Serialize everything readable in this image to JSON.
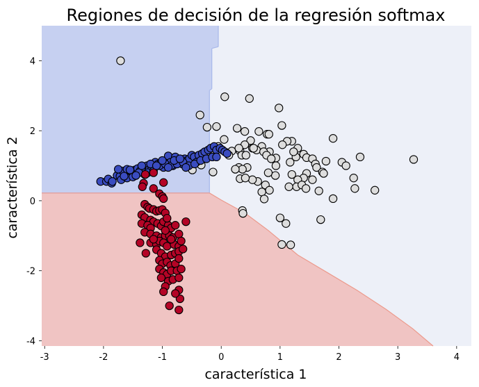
{
  "chart_data": {
    "type": "scatter",
    "title": "Regiones de decisión de la regresión softmax",
    "xlabel": "característica 1",
    "ylabel": "característica 2",
    "xlim": [
      -3.05,
      4.25
    ],
    "ylim": [
      -4.15,
      5.0
    ],
    "xticks": [
      -3,
      -2,
      -1,
      0,
      1,
      2,
      3,
      4
    ],
    "yticks": [
      -4,
      -2,
      0,
      2,
      4
    ],
    "grid": false,
    "legend": "none",
    "regions": [
      {
        "class": "blue",
        "color": "#c6d0f1",
        "boundary_color": "#a8b8ea",
        "polygon": [
          [
            -3.05,
            5.0
          ],
          [
            -0.05,
            5.0
          ],
          [
            -0.05,
            4.4
          ],
          [
            -0.16,
            4.35
          ],
          [
            -0.16,
            3.2
          ],
          [
            -0.2,
            3.15
          ],
          [
            -0.2,
            0.22
          ],
          [
            -3.05,
            0.22
          ]
        ]
      },
      {
        "class": "red",
        "color": "#f0c4c3",
        "boundary_color": "#ec9a8c",
        "polygon": [
          [
            -3.05,
            0.22
          ],
          [
            -0.2,
            0.22
          ],
          [
            0.0,
            0.02
          ],
          [
            0.4,
            -0.35
          ],
          [
            0.8,
            -0.85
          ],
          [
            1.3,
            -1.55
          ],
          [
            1.8,
            -2.05
          ],
          [
            2.3,
            -2.55
          ],
          [
            2.8,
            -3.1
          ],
          [
            3.25,
            -3.65
          ],
          [
            3.6,
            -4.15
          ],
          [
            -3.05,
            -4.15
          ]
        ]
      },
      {
        "class": "gray",
        "color": "#edf0f8",
        "boundary_color": null,
        "polygon": [
          [
            -0.05,
            5.0
          ],
          [
            4.25,
            5.0
          ],
          [
            4.25,
            -4.15
          ],
          [
            3.6,
            -4.15
          ],
          [
            3.25,
            -3.65
          ],
          [
            2.8,
            -3.1
          ],
          [
            2.3,
            -2.55
          ],
          [
            1.8,
            -2.05
          ],
          [
            1.3,
            -1.55
          ],
          [
            0.8,
            -0.85
          ],
          [
            0.4,
            -0.35
          ],
          [
            0.0,
            0.02
          ],
          [
            -0.2,
            0.22
          ],
          [
            -0.2,
            3.15
          ],
          [
            -0.16,
            3.2
          ],
          [
            -0.16,
            4.35
          ],
          [
            -0.05,
            4.4
          ]
        ]
      }
    ],
    "series": [
      {
        "class": "gray",
        "color": "#dddddd",
        "points": [
          [
            -1.71,
            4.0
          ],
          [
            0.06,
            2.97
          ],
          [
            0.48,
            2.92
          ],
          [
            0.98,
            2.65
          ],
          [
            -0.36,
            2.45
          ],
          [
            -0.24,
            2.1
          ],
          [
            -0.08,
            2.12
          ],
          [
            0.27,
            2.07
          ],
          [
            0.4,
            1.98
          ],
          [
            0.5,
            1.72
          ],
          [
            0.64,
            1.98
          ],
          [
            0.78,
            1.9
          ],
          [
            0.81,
            1.9
          ],
          [
            1.03,
            2.15
          ],
          [
            1.2,
            1.7
          ],
          [
            1.12,
            1.7
          ],
          [
            1.3,
            1.5
          ],
          [
            1.27,
            1.25
          ],
          [
            1.04,
            1.6
          ],
          [
            0.93,
            1.22
          ],
          [
            0.82,
            1.4
          ],
          [
            0.69,
            1.55
          ],
          [
            0.6,
            1.45
          ],
          [
            0.53,
            1.5
          ],
          [
            0.72,
            1.4
          ],
          [
            0.4,
            1.6
          ],
          [
            0.32,
            1.42
          ],
          [
            0.18,
            1.42
          ],
          [
            0.05,
            1.75
          ],
          [
            -0.05,
            1.55
          ],
          [
            0.13,
            1.3
          ],
          [
            0.3,
            1.5
          ],
          [
            0.35,
            1.3
          ],
          [
            0.42,
            1.3
          ],
          [
            0.55,
            1.5
          ],
          [
            0.77,
            1.3
          ],
          [
            0.85,
            1.2
          ],
          [
            0.93,
            1.0
          ],
          [
            1.17,
            1.1
          ],
          [
            1.23,
            1.4
          ],
          [
            1.4,
            1.33
          ],
          [
            1.45,
            1.23
          ],
          [
            1.55,
            1.2
          ],
          [
            1.6,
            1.05
          ],
          [
            1.78,
            1.13
          ],
          [
            1.9,
            1.78
          ],
          [
            2.05,
            1.1
          ],
          [
            2.12,
            1.0
          ],
          [
            2.36,
            1.25
          ],
          [
            2.25,
            0.65
          ],
          [
            2.27,
            0.35
          ],
          [
            2.61,
            0.3
          ],
          [
            3.27,
            1.18
          ],
          [
            1.62,
            0.95
          ],
          [
            1.72,
            0.82
          ],
          [
            1.74,
            0.78
          ],
          [
            1.45,
            0.78
          ],
          [
            1.4,
            0.65
          ],
          [
            1.3,
            0.6
          ],
          [
            1.2,
            0.75
          ],
          [
            1.15,
            0.4
          ],
          [
            1.28,
            0.4
          ],
          [
            1.37,
            0.45
          ],
          [
            1.44,
            0.35
          ],
          [
            1.55,
            0.6
          ],
          [
            1.66,
            0.28
          ],
          [
            1.9,
            0.06
          ],
          [
            0.92,
            0.72
          ],
          [
            0.8,
            0.8
          ],
          [
            0.75,
            0.45
          ],
          [
            0.69,
            0.25
          ],
          [
            0.73,
            0.05
          ],
          [
            0.82,
            0.3
          ],
          [
            0.62,
            0.55
          ],
          [
            0.53,
            0.6
          ],
          [
            0.44,
            0.95
          ],
          [
            0.3,
            0.95
          ],
          [
            0.36,
            0.9
          ],
          [
            0.32,
            0.63
          ],
          [
            0.41,
            0.65
          ],
          [
            0.24,
            0.9
          ],
          [
            -0.14,
            0.82
          ],
          [
            -0.34,
            1.02
          ],
          [
            -0.49,
            0.88
          ],
          [
            0.36,
            -0.28
          ],
          [
            0.37,
            -0.36
          ],
          [
            1.0,
            -0.49
          ],
          [
            1.1,
            -0.65
          ],
          [
            1.69,
            -0.54
          ],
          [
            1.03,
            -1.25
          ],
          [
            1.18,
            -1.26
          ]
        ]
      },
      {
        "class": "blue",
        "color": "#3a4cc0",
        "points": [
          [
            -2.05,
            0.55
          ],
          [
            -1.95,
            0.55
          ],
          [
            -1.92,
            0.62
          ],
          [
            -1.86,
            0.5
          ],
          [
            -1.77,
            0.72
          ],
          [
            -1.72,
            0.7
          ],
          [
            -1.67,
            0.85
          ],
          [
            -1.6,
            0.9
          ],
          [
            -1.52,
            0.78
          ],
          [
            -1.47,
            0.88
          ],
          [
            -1.42,
            0.92
          ],
          [
            -1.38,
            0.85
          ],
          [
            -1.33,
            0.82
          ],
          [
            -1.3,
            0.75
          ],
          [
            -1.26,
            1.0
          ],
          [
            -1.22,
            0.9
          ],
          [
            -1.18,
            0.95
          ],
          [
            -1.12,
            1.1
          ],
          [
            -1.07,
            1.05
          ],
          [
            -1.02,
            1.1
          ],
          [
            -0.98,
            0.95
          ],
          [
            -0.94,
            1.15
          ],
          [
            -0.9,
            1.28
          ],
          [
            -0.86,
            1.1
          ],
          [
            -0.82,
            1.0
          ],
          [
            -0.78,
            1.25
          ],
          [
            -0.72,
            1.1
          ],
          [
            -0.66,
            1.05
          ],
          [
            -0.62,
            1.2
          ],
          [
            -0.58,
            1.15
          ],
          [
            -0.54,
            1.2
          ],
          [
            -0.5,
            1.3
          ],
          [
            -0.46,
            1.25
          ],
          [
            -0.42,
            1.1
          ],
          [
            -0.38,
            1.3
          ],
          [
            -0.32,
            1.35
          ],
          [
            -0.28,
            1.4
          ],
          [
            -0.22,
            1.45
          ],
          [
            -0.18,
            1.5
          ],
          [
            -0.12,
            1.55
          ],
          [
            -0.08,
            1.45
          ],
          [
            -0.02,
            1.5
          ],
          [
            0.02,
            1.45
          ],
          [
            0.06,
            1.4
          ],
          [
            0.1,
            1.35
          ],
          [
            -1.7,
            0.6
          ],
          [
            -1.6,
            0.65
          ],
          [
            -1.5,
            0.68
          ],
          [
            -1.4,
            0.8
          ],
          [
            -1.35,
            1.0
          ],
          [
            -1.25,
            0.8
          ],
          [
            -1.15,
            0.85
          ],
          [
            -1.05,
            1.0
          ],
          [
            -0.95,
            1.05
          ],
          [
            -0.85,
            1.0
          ],
          [
            -0.75,
            1.05
          ],
          [
            -0.65,
            1.1
          ],
          [
            -0.55,
            1.0
          ],
          [
            -0.45,
            1.05
          ],
          [
            -0.35,
            1.15
          ],
          [
            -0.25,
            1.2
          ],
          [
            -0.15,
            1.25
          ],
          [
            -0.08,
            1.25
          ],
          [
            -1.55,
            0.88
          ],
          [
            -1.45,
            0.72
          ],
          [
            -1.85,
            0.55
          ],
          [
            -1.75,
            0.9
          ],
          [
            -1.65,
            0.7
          ],
          [
            -1.2,
            1.05
          ],
          [
            -1.1,
            1.0
          ],
          [
            -1.0,
            1.15
          ],
          [
            -0.9,
            0.95
          ],
          [
            -0.8,
            1.15
          ],
          [
            -0.7,
            1.2
          ],
          [
            -0.6,
            0.95
          ]
        ]
      },
      {
        "class": "red",
        "color": "#b40426",
        "points": [
          [
            -1.29,
            0.75
          ],
          [
            -1.15,
            0.8
          ],
          [
            -0.98,
            0.52
          ],
          [
            -1.32,
            0.5
          ],
          [
            -1.34,
            0.4
          ],
          [
            -1.15,
            0.35
          ],
          [
            -1.05,
            0.2
          ],
          [
            -1.0,
            0.12
          ],
          [
            -0.98,
            0.06
          ],
          [
            -1.3,
            -0.1
          ],
          [
            -1.25,
            -0.18
          ],
          [
            -1.22,
            -0.22
          ],
          [
            -1.15,
            -0.25
          ],
          [
            -1.1,
            -0.3
          ],
          [
            -1.05,
            -0.28
          ],
          [
            -1.0,
            -0.25
          ],
          [
            -0.95,
            -0.35
          ],
          [
            -1.35,
            -0.4
          ],
          [
            -1.3,
            -0.48
          ],
          [
            -1.2,
            -0.55
          ],
          [
            -1.15,
            -0.6
          ],
          [
            -1.35,
            -0.65
          ],
          [
            -1.25,
            -0.7
          ],
          [
            -1.2,
            -0.78
          ],
          [
            -1.08,
            -0.65
          ],
          [
            -1.02,
            -0.72
          ],
          [
            -0.98,
            -0.6
          ],
          [
            -0.9,
            -0.7
          ],
          [
            -0.85,
            -0.78
          ],
          [
            -1.3,
            -0.9
          ],
          [
            -1.2,
            -0.95
          ],
          [
            -1.1,
            -1.0
          ],
          [
            -1.02,
            -1.05
          ],
          [
            -0.95,
            -1.0
          ],
          [
            -0.88,
            -1.0
          ],
          [
            -0.82,
            -1.05
          ],
          [
            -1.38,
            -1.2
          ],
          [
            -1.2,
            -1.2
          ],
          [
            -1.1,
            -1.25
          ],
          [
            -1.05,
            -1.15
          ],
          [
            -0.98,
            -1.2
          ],
          [
            -0.92,
            -1.3
          ],
          [
            -0.8,
            -1.25
          ],
          [
            -0.72,
            -1.3
          ],
          [
            -1.28,
            -1.5
          ],
          [
            -1.1,
            -1.4
          ],
          [
            -1.02,
            -1.5
          ],
          [
            -0.95,
            -1.6
          ],
          [
            -0.85,
            -1.55
          ],
          [
            -0.78,
            -1.5
          ],
          [
            -0.72,
            -1.45
          ],
          [
            -0.65,
            -1.38
          ],
          [
            -1.05,
            -1.7
          ],
          [
            -1.0,
            -1.8
          ],
          [
            -0.92,
            -1.75
          ],
          [
            -0.86,
            -1.85
          ],
          [
            -0.78,
            -1.8
          ],
          [
            -0.72,
            -1.65
          ],
          [
            -1.05,
            -1.95
          ],
          [
            -0.98,
            -2.05
          ],
          [
            -0.92,
            -2.1
          ],
          [
            -0.85,
            -2.0
          ],
          [
            -0.75,
            -2.0
          ],
          [
            -0.68,
            -1.95
          ],
          [
            -1.02,
            -2.2
          ],
          [
            -0.9,
            -2.3
          ],
          [
            -0.82,
            -2.25
          ],
          [
            -0.72,
            -2.2
          ],
          [
            -0.95,
            -2.45
          ],
          [
            -0.98,
            -2.6
          ],
          [
            -0.72,
            -2.55
          ],
          [
            -0.7,
            -2.8
          ],
          [
            -0.78,
            -2.65
          ],
          [
            -0.88,
            -3.0
          ],
          [
            -0.72,
            -3.12
          ],
          [
            -0.6,
            -0.6
          ],
          [
            -0.78,
            -0.7
          ],
          [
            -0.72,
            -0.95
          ],
          [
            -0.68,
            -1.15
          ],
          [
            -0.85,
            -1.1
          ],
          [
            -1.15,
            -1.1
          ],
          [
            -0.92,
            -0.5
          ],
          [
            -0.95,
            -0.85
          ]
        ]
      }
    ]
  }
}
